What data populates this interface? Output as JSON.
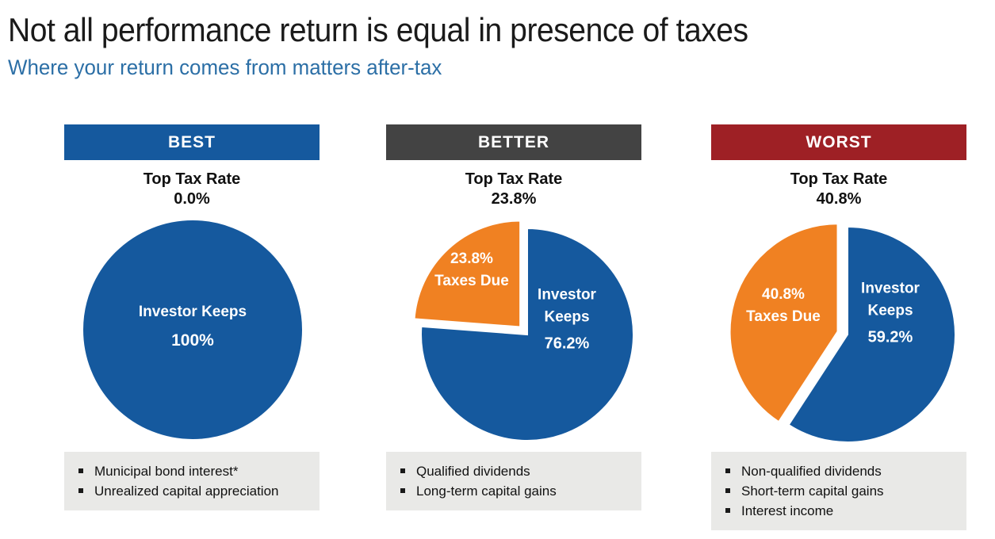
{
  "header": {
    "title": "Not all performance return is equal in presence of taxes",
    "subtitle": "Where your return comes from matters after-tax"
  },
  "colors": {
    "title": "#1A1A1A",
    "subtitle": "#2C6FA6",
    "best_badge": "#15599E",
    "better_badge": "#434343",
    "worst_badge": "#9E2025",
    "pie_blue": "#15599E",
    "pie_orange": "#F08122",
    "bullet_bg": "#E9E9E7"
  },
  "columns": [
    {
      "badge": "BEST",
      "tax_label": "Top Tax Rate",
      "tax_rate": "0.0%",
      "pie_labels": {
        "keeps_line1": "Investor Keeps",
        "keeps_value": "100%"
      },
      "bullets": [
        "Municipal bond interest*",
        "Unrealized capital appreciation"
      ]
    },
    {
      "badge": "BETTER",
      "tax_label": "Top Tax Rate",
      "tax_rate": "23.8%",
      "pie_labels": {
        "taxes_value": "23.8%",
        "taxes_label": "Taxes Due",
        "keeps_line1": "Investor",
        "keeps_line2": "Keeps",
        "keeps_value": "76.2%"
      },
      "bullets": [
        "Qualified dividends",
        "Long-term capital gains"
      ]
    },
    {
      "badge": "WORST",
      "tax_label": "Top Tax Rate",
      "tax_rate": "40.8%",
      "pie_labels": {
        "taxes_value": "40.8%",
        "taxes_label": "Taxes Due",
        "keeps_line1": "Investor",
        "keeps_line2": "Keeps",
        "keeps_value": "59.2%"
      },
      "bullets": [
        "Non-qualified dividends",
        "Short-term capital gains",
        "Interest income"
      ]
    }
  ],
  "chart_data": [
    {
      "type": "pie",
      "title": "BEST — Top Tax Rate 0.0%",
      "labels": [
        "Investor Keeps"
      ],
      "values": [
        100
      ],
      "colors": [
        "#15599E"
      ],
      "exploded": null,
      "start_angle_deg": 0,
      "direction": "clockwise"
    },
    {
      "type": "pie",
      "title": "BETTER — Top Tax Rate 23.8%",
      "labels": [
        "Investor Keeps",
        "Taxes Due"
      ],
      "values": [
        76.2,
        23.8
      ],
      "colors": [
        "#15599E",
        "#F08122"
      ],
      "exploded": "Taxes Due",
      "start_angle_deg": 0,
      "direction": "clockwise"
    },
    {
      "type": "pie",
      "title": "WORST — Top Tax Rate 40.8%",
      "labels": [
        "Investor Keeps",
        "Taxes Due"
      ],
      "values": [
        59.2,
        40.8
      ],
      "colors": [
        "#15599E",
        "#F08122"
      ],
      "exploded": "Taxes Due",
      "start_angle_deg": 0,
      "direction": "clockwise"
    }
  ]
}
